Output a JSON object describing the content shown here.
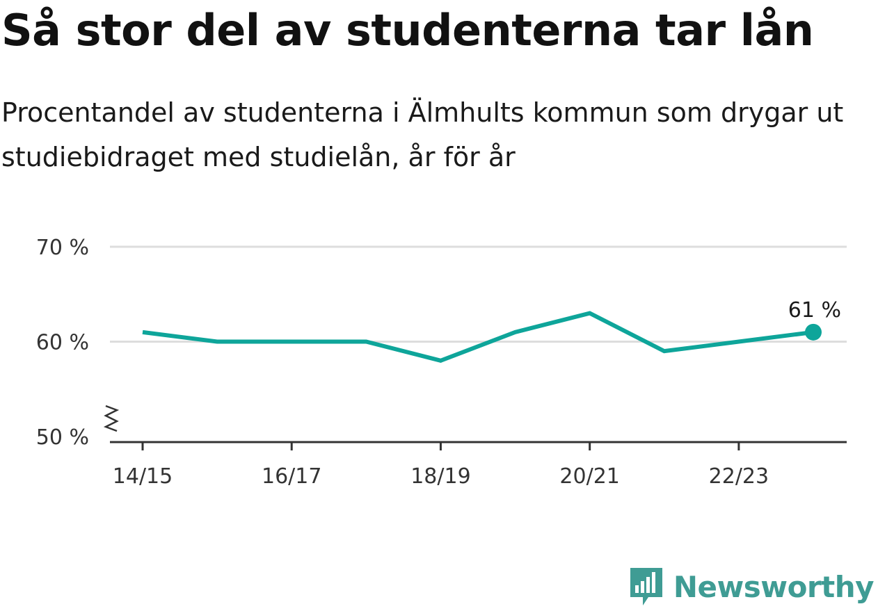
{
  "title": "Så stor del av studenterna tar lån",
  "subtitle": "Procentandel av studenterna i Älmhults kommun som drygar ut studiebidraget med studielån, år för år",
  "brand": {
    "name": "Newsworthy",
    "logo_icon": "bar-chart-badge-icon",
    "color": "#3f9c94"
  },
  "chart_data": {
    "type": "line",
    "x": [
      "14/15",
      "15/16",
      "16/17",
      "17/18",
      "18/19",
      "19/20",
      "20/21",
      "21/22",
      "22/23",
      "23/24"
    ],
    "x_tick_labels": [
      "14/15",
      "16/17",
      "18/19",
      "20/21",
      "22/23"
    ],
    "series": [
      {
        "values": [
          61,
          60,
          60,
          60,
          58,
          61,
          63,
          59,
          60,
          61
        ],
        "color": "#0ea59a"
      }
    ],
    "y_ticks": [
      50,
      60,
      70
    ],
    "y_tick_format": "{v} %",
    "ylim": [
      50,
      70
    ],
    "y_axis_break": true,
    "grid": true,
    "last_point_label": "61 %"
  }
}
